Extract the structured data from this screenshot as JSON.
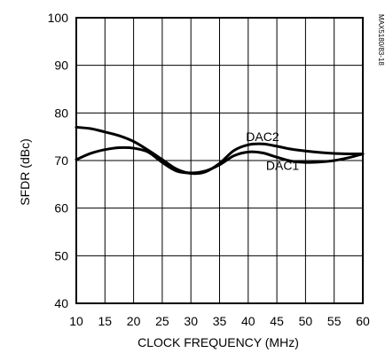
{
  "chart_data": {
    "type": "line",
    "xlabel": "CLOCK FREQUENCY (MHz)",
    "ylabel": "SFDR (dBc)",
    "xlim": [
      10,
      60
    ],
    "ylim": [
      40,
      100
    ],
    "xticks": [
      10,
      15,
      20,
      25,
      30,
      35,
      40,
      45,
      50,
      55,
      60
    ],
    "yticks": [
      40,
      50,
      60,
      70,
      80,
      90,
      100
    ],
    "grid": true,
    "legend": "none",
    "figure_id": "MAX5180/83-18",
    "series": [
      {
        "name": "DAC1",
        "x": [
          10,
          12.5,
          15,
          17.5,
          20,
          22.5,
          25,
          27.5,
          30,
          32.5,
          35,
          37.5,
          40,
          42.5,
          45,
          47.5,
          50,
          52.5,
          55,
          57.5,
          60
        ],
        "y": [
          70.2,
          71.5,
          72.3,
          72.7,
          72.6,
          71.8,
          69.6,
          67.8,
          67.4,
          67.8,
          69.1,
          71.0,
          71.8,
          71.6,
          70.7,
          69.9,
          69.6,
          69.7,
          70.0,
          70.6,
          71.4
        ]
      },
      {
        "name": "DAC2",
        "x": [
          10,
          12.5,
          15,
          17.5,
          20,
          22.5,
          25,
          27.5,
          30,
          32.5,
          35,
          37.5,
          40,
          42.5,
          45,
          47.5,
          50,
          52.5,
          55,
          57.5,
          60
        ],
        "y": [
          77.0,
          76.7,
          76.0,
          75.2,
          74.0,
          72.2,
          70.2,
          68.2,
          67.3,
          67.6,
          69.4,
          72.1,
          73.3,
          73.5,
          73.0,
          72.4,
          72.0,
          71.7,
          71.5,
          71.4,
          71.4
        ]
      }
    ]
  }
}
